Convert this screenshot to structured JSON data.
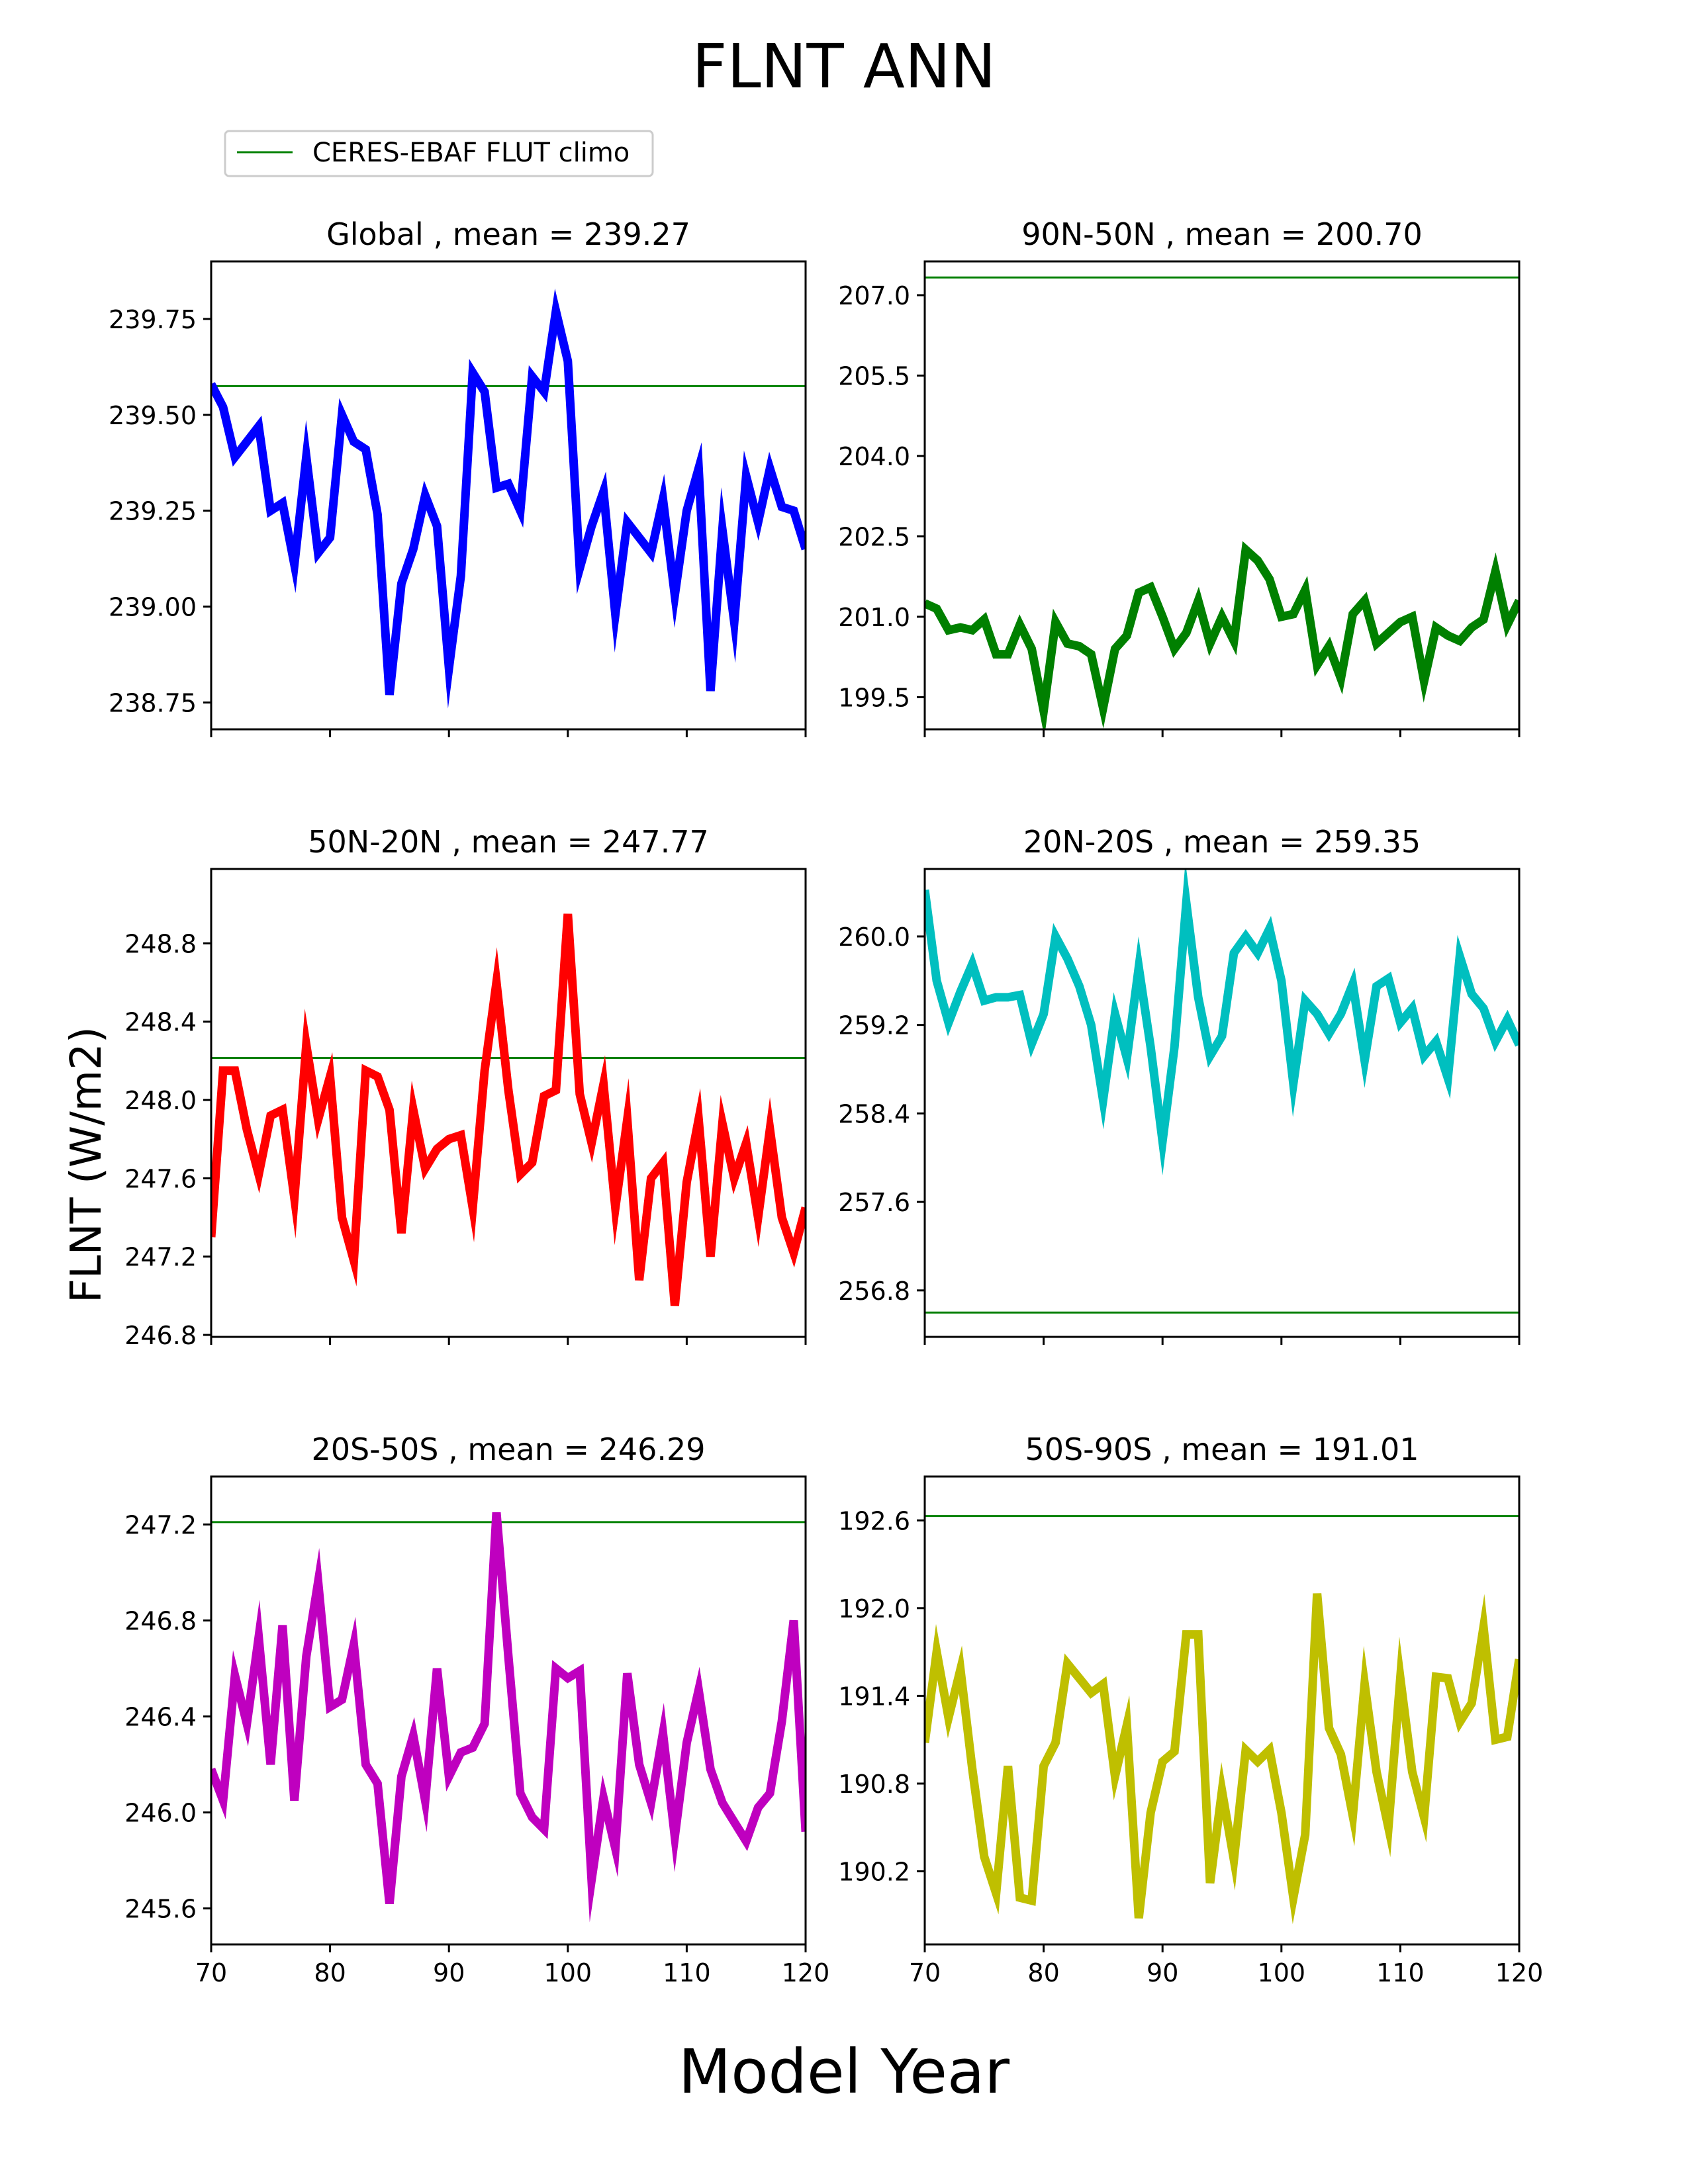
{
  "figure": {
    "title": "FLNT ANN",
    "xlabel": "Model Year",
    "ylabel": "FLNT (W/m2)",
    "legend": {
      "label": "CERES-EBAF FLUT climo",
      "color": "#008000"
    }
  },
  "chart_data": [
    {
      "type": "line",
      "title": "Global , mean = 239.27",
      "color": "#0000ff",
      "climo": 239.575,
      "xlim": [
        70,
        120
      ],
      "ylim": [
        238.68,
        239.9
      ],
      "yticks": [
        238.75,
        239.0,
        239.25,
        239.5,
        239.75
      ],
      "ytick_labels": [
        "238.75",
        "239.00",
        "239.25",
        "239.50",
        "239.75"
      ],
      "xticks": [
        70,
        80,
        90,
        100,
        110,
        120
      ],
      "xtick_labels": [
        "",
        "",
        "",
        "",
        "",
        ""
      ],
      "x": [
        70,
        71,
        72,
        73,
        74,
        75,
        76,
        77,
        78,
        79,
        80,
        81,
        82,
        83,
        84,
        85,
        86,
        87,
        88,
        89,
        90,
        91,
        92,
        93,
        94,
        95,
        96,
        97,
        98,
        99,
        100,
        101,
        102,
        103,
        104,
        105,
        106,
        107,
        108,
        109,
        110,
        111,
        112,
        113,
        114,
        115,
        116,
        117,
        118,
        119,
        120
      ],
      "values": [
        239.58,
        239.52,
        239.39,
        239.43,
        239.47,
        239.25,
        239.27,
        239.11,
        239.39,
        239.14,
        239.18,
        239.5,
        239.43,
        239.41,
        239.24,
        238.77,
        239.06,
        239.15,
        239.29,
        239.21,
        238.84,
        239.08,
        239.61,
        239.56,
        239.31,
        239.32,
        239.25,
        239.6,
        239.56,
        239.77,
        239.64,
        239.1,
        239.21,
        239.3,
        238.98,
        239.22,
        239.18,
        239.14,
        239.28,
        239.03,
        239.25,
        239.36,
        238.78,
        239.2,
        238.96,
        239.34,
        239.22,
        239.36,
        239.26,
        239.25,
        239.15
      ]
    },
    {
      "type": "line",
      "title": "90N-50N , mean = 200.70",
      "color": "#008000",
      "climo": 207.33,
      "xlim": [
        70,
        120
      ],
      "ylim": [
        198.9,
        207.63
      ],
      "yticks": [
        199.5,
        201.0,
        202.5,
        204.0,
        205.5,
        207.0
      ],
      "ytick_labels": [
        "199.5",
        "201.0",
        "202.5",
        "204.0",
        "205.5",
        "207.0"
      ],
      "xticks": [
        70,
        80,
        90,
        100,
        110,
        120
      ],
      "xtick_labels": [
        "",
        "",
        "",
        "",
        "",
        ""
      ],
      "x": [
        70,
        71,
        72,
        73,
        74,
        75,
        76,
        77,
        78,
        79,
        80,
        81,
        82,
        83,
        84,
        85,
        86,
        87,
        88,
        89,
        90,
        91,
        92,
        93,
        94,
        95,
        96,
        97,
        98,
        99,
        100,
        101,
        102,
        103,
        104,
        105,
        106,
        107,
        108,
        109,
        110,
        111,
        112,
        113,
        114,
        115,
        116,
        117,
        118,
        119,
        120
      ],
      "values": [
        201.25,
        201.15,
        200.75,
        200.8,
        200.75,
        200.95,
        200.3,
        200.3,
        200.85,
        200.4,
        199.25,
        200.9,
        200.5,
        200.45,
        200.3,
        199.3,
        200.4,
        200.65,
        201.45,
        201.55,
        201.0,
        200.4,
        200.7,
        201.3,
        200.5,
        201.0,
        200.55,
        202.25,
        202.05,
        201.7,
        201.0,
        201.05,
        201.5,
        200.1,
        200.45,
        199.85,
        201.05,
        201.3,
        200.5,
        200.7,
        200.9,
        201.0,
        199.8,
        200.8,
        200.65,
        200.55,
        200.8,
        200.95,
        201.85,
        200.85,
        201.3
      ]
    },
    {
      "type": "line",
      "title": "50N-20N , mean = 247.77",
      "color": "#ff0000",
      "climo": 248.215,
      "xlim": [
        70,
        120
      ],
      "ylim": [
        246.79,
        249.18
      ],
      "yticks": [
        246.8,
        247.2,
        247.6,
        248.0,
        248.4,
        248.8
      ],
      "ytick_labels": [
        "246.8",
        "247.2",
        "247.6",
        "248.0",
        "248.4",
        "248.8"
      ],
      "xticks": [
        70,
        80,
        90,
        100,
        110,
        120
      ],
      "xtick_labels": [
        "",
        "",
        "",
        "",
        "",
        ""
      ],
      "x": [
        70,
        71,
        72,
        73,
        74,
        75,
        76,
        77,
        78,
        79,
        80,
        81,
        82,
        83,
        84,
        85,
        86,
        87,
        88,
        89,
        90,
        91,
        92,
        93,
        94,
        95,
        96,
        97,
        98,
        99,
        100,
        101,
        102,
        103,
        104,
        105,
        106,
        107,
        108,
        109,
        110,
        111,
        112,
        113,
        114,
        115,
        116,
        117,
        118,
        119,
        120
      ],
      "values": [
        247.3,
        248.15,
        248.15,
        247.85,
        247.62,
        247.92,
        247.95,
        247.5,
        248.28,
        247.9,
        248.12,
        247.4,
        247.18,
        248.15,
        248.12,
        247.95,
        247.32,
        247.95,
        247.65,
        247.75,
        247.8,
        247.82,
        247.45,
        248.15,
        248.6,
        248.05,
        247.62,
        247.68,
        248.02,
        248.05,
        248.95,
        248.03,
        247.78,
        248.08,
        247.45,
        247.9,
        247.08,
        247.6,
        247.68,
        246.95,
        247.58,
        247.9,
        247.2,
        247.88,
        247.6,
        247.78,
        247.4,
        247.85,
        247.4,
        247.22,
        247.45
      ]
    },
    {
      "type": "line",
      "title": "20N-20S , mean = 259.35",
      "color": "#00bfbf",
      "climo": 256.6,
      "xlim": [
        70,
        120
      ],
      "ylim": [
        256.38,
        260.61
      ],
      "yticks": [
        256.8,
        257.6,
        258.4,
        259.2,
        260.0
      ],
      "ytick_labels": [
        "256.8",
        "257.6",
        "258.4",
        "259.2",
        "260.0"
      ],
      "xticks": [
        70,
        80,
        90,
        100,
        110,
        120
      ],
      "xtick_labels": [
        "",
        "",
        "",
        "",
        "",
        ""
      ],
      "x": [
        70,
        71,
        72,
        73,
        74,
        75,
        76,
        77,
        78,
        79,
        80,
        81,
        82,
        83,
        84,
        85,
        86,
        87,
        88,
        89,
        90,
        91,
        92,
        93,
        94,
        95,
        96,
        97,
        98,
        99,
        100,
        101,
        102,
        103,
        104,
        105,
        106,
        107,
        108,
        109,
        110,
        111,
        112,
        113,
        114,
        115,
        116,
        117,
        118,
        119,
        120
      ],
      "values": [
        260.42,
        259.6,
        259.22,
        259.5,
        259.75,
        259.42,
        259.45,
        259.45,
        259.47,
        259.03,
        259.3,
        260.0,
        259.8,
        259.55,
        259.2,
        258.52,
        259.3,
        258.9,
        259.72,
        259.0,
        258.15,
        259.0,
        260.3,
        259.45,
        258.92,
        259.1,
        259.85,
        260.0,
        259.85,
        260.07,
        259.6,
        258.67,
        259.42,
        259.3,
        259.12,
        259.3,
        259.57,
        258.88,
        259.55,
        259.62,
        259.22,
        259.35,
        258.92,
        259.05,
        258.72,
        259.82,
        259.48,
        259.35,
        259.05,
        259.25,
        259.02
      ]
    },
    {
      "type": "line",
      "title": "20S-50S , mean = 246.29",
      "color": "#bf00bf",
      "climo": 247.21,
      "xlim": [
        70,
        120
      ],
      "ylim": [
        245.45,
        247.4
      ],
      "yticks": [
        245.6,
        246.0,
        246.4,
        246.8,
        247.2
      ],
      "ytick_labels": [
        "245.6",
        "246.0",
        "246.4",
        "246.8",
        "247.2"
      ],
      "xticks": [
        70,
        80,
        90,
        100,
        110,
        120
      ],
      "xtick_labels": [
        "70",
        "80",
        "90",
        "100",
        "110",
        "120"
      ],
      "x": [
        70,
        71,
        72,
        73,
        74,
        75,
        76,
        77,
        78,
        79,
        80,
        81,
        82,
        83,
        84,
        85,
        86,
        87,
        88,
        89,
        90,
        91,
        92,
        93,
        94,
        95,
        96,
        97,
        98,
        99,
        100,
        101,
        102,
        103,
        104,
        105,
        106,
        107,
        108,
        109,
        110,
        111,
        112,
        113,
        114,
        115,
        116,
        117,
        118,
        119,
        120
      ],
      "values": [
        246.18,
        246.05,
        246.57,
        246.37,
        246.73,
        246.2,
        246.78,
        246.05,
        246.65,
        246.96,
        246.44,
        246.47,
        246.7,
        246.2,
        246.12,
        245.62,
        246.15,
        246.32,
        246.05,
        246.6,
        246.15,
        246.25,
        246.27,
        246.37,
        247.25,
        246.65,
        246.08,
        245.98,
        245.93,
        246.6,
        246.56,
        246.59,
        245.72,
        246.06,
        245.85,
        246.58,
        246.2,
        246.04,
        246.33,
        245.9,
        246.29,
        246.51,
        246.18,
        246.04,
        245.96,
        245.88,
        246.02,
        246.08,
        246.38,
        246.8,
        245.92
      ]
    },
    {
      "type": "line",
      "title": "50S-90S , mean = 191.01",
      "color": "#bfbf00",
      "climo": 192.63,
      "xlim": [
        70,
        120
      ],
      "ylim": [
        189.7,
        192.9
      ],
      "yticks": [
        190.2,
        190.8,
        191.4,
        192.0,
        192.6
      ],
      "ytick_labels": [
        "190.2",
        "190.8",
        "191.4",
        "192.0",
        "192.6"
      ],
      "xticks": [
        70,
        80,
        90,
        100,
        110,
        120
      ],
      "xtick_labels": [
        "70",
        "80",
        "90",
        "100",
        "110",
        "120"
      ],
      "x": [
        70,
        71,
        72,
        73,
        74,
        75,
        76,
        77,
        78,
        79,
        80,
        81,
        82,
        83,
        84,
        85,
        86,
        87,
        88,
        89,
        90,
        91,
        92,
        93,
        94,
        95,
        96,
        97,
        98,
        99,
        100,
        101,
        102,
        103,
        104,
        105,
        106,
        107,
        108,
        109,
        110,
        111,
        112,
        113,
        114,
        115,
        116,
        117,
        118,
        119,
        120
      ],
      "values": [
        191.08,
        191.7,
        191.25,
        191.58,
        190.9,
        190.3,
        190.05,
        190.92,
        190.02,
        190.0,
        190.92,
        191.08,
        191.62,
        191.52,
        191.42,
        191.48,
        190.85,
        191.2,
        189.88,
        190.6,
        190.95,
        191.02,
        191.82,
        191.82,
        190.12,
        190.75,
        190.28,
        191.03,
        190.95,
        191.03,
        190.6,
        190.02,
        190.45,
        192.1,
        191.18,
        191.0,
        190.58,
        191.48,
        190.88,
        190.5,
        191.52,
        190.88,
        190.57,
        191.53,
        191.52,
        191.22,
        191.35,
        191.87,
        191.1,
        191.12,
        191.65
      ]
    }
  ]
}
